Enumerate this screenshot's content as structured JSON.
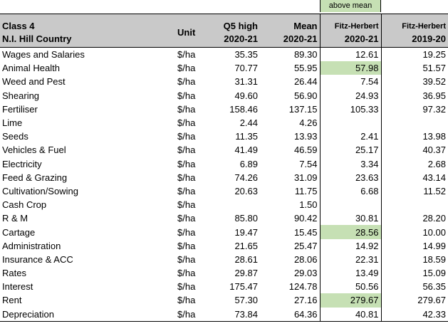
{
  "legend": {
    "label": "above mean",
    "color": "#c6e0b4"
  },
  "header": {
    "title_line1": "Class 4",
    "title_line2": "N.I. Hill Country",
    "unit": "Unit",
    "q5_line1": "Q5 high",
    "q5_line2": "2020-21",
    "mean_line1": "Mean",
    "mean_line2": "2020-21",
    "fh21_line1": "Fitz-Herbert",
    "fh21_line2": "2020-21",
    "fh20_line1": "Fitz-Herbert",
    "fh20_line2": "2019-20"
  },
  "rows": [
    {
      "name": "Wages and Salaries",
      "unit": "$/ha",
      "q5": "35.35",
      "mean": "89.30",
      "fh21": "12.61",
      "fh20": "19.25",
      "above_mean": false
    },
    {
      "name": "Animal Health",
      "unit": "$/ha",
      "q5": "70.77",
      "mean": "55.95",
      "fh21": "57.98",
      "fh20": "51.57",
      "above_mean": true
    },
    {
      "name": "Weed and Pest",
      "unit": "$/ha",
      "q5": "31.31",
      "mean": "26.44",
      "fh21": "7.54",
      "fh20": "39.52",
      "above_mean": false
    },
    {
      "name": "Shearing",
      "unit": "$/ha",
      "q5": "49.60",
      "mean": "56.90",
      "fh21": "24.93",
      "fh20": "36.95",
      "above_mean": false
    },
    {
      "name": "Fertiliser",
      "unit": "$/ha",
      "q5": "158.46",
      "mean": "137.15",
      "fh21": "105.33",
      "fh20": "97.32",
      "above_mean": false
    },
    {
      "name": "Lime",
      "unit": "$/ha",
      "q5": "2.44",
      "mean": "4.26",
      "fh21": "",
      "fh20": "",
      "above_mean": false
    },
    {
      "name": "Seeds",
      "unit": "$/ha",
      "q5": "11.35",
      "mean": "13.93",
      "fh21": "2.41",
      "fh20": "13.98",
      "above_mean": false
    },
    {
      "name": "Vehicles & Fuel",
      "unit": "$/ha",
      "q5": "41.49",
      "mean": "46.59",
      "fh21": "25.17",
      "fh20": "40.37",
      "above_mean": false
    },
    {
      "name": "Electricity",
      "unit": "$/ha",
      "q5": "6.89",
      "mean": "7.54",
      "fh21": "3.34",
      "fh20": "2.68",
      "above_mean": false
    },
    {
      "name": "Feed & Grazing",
      "unit": "$/ha",
      "q5": "74.26",
      "mean": "31.09",
      "fh21": "23.63",
      "fh20": "43.14",
      "above_mean": false
    },
    {
      "name": "Cultivation/Sowing",
      "unit": "$/ha",
      "q5": "20.63",
      "mean": "11.75",
      "fh21": "6.68",
      "fh20": "11.52",
      "above_mean": false
    },
    {
      "name": "Cash Crop",
      "unit": "$/ha",
      "q5": "",
      "mean": "1.50",
      "fh21": "",
      "fh20": "",
      "above_mean": false
    },
    {
      "name": "R & M",
      "unit": "$/ha",
      "q5": "85.80",
      "mean": "90.42",
      "fh21": "30.81",
      "fh20": "28.20",
      "above_mean": false
    },
    {
      "name": "Cartage",
      "unit": "$/ha",
      "q5": "19.47",
      "mean": "15.45",
      "fh21": "28.56",
      "fh20": "10.00",
      "above_mean": true
    },
    {
      "name": "Administration",
      "unit": "$/ha",
      "q5": "21.65",
      "mean": "25.47",
      "fh21": "14.92",
      "fh20": "14.99",
      "above_mean": false
    },
    {
      "name": "Insurance & ACC",
      "unit": "$/ha",
      "q5": "28.61",
      "mean": "28.06",
      "fh21": "22.31",
      "fh20": "18.59",
      "above_mean": false
    },
    {
      "name": "Rates",
      "unit": "$/ha",
      "q5": "29.87",
      "mean": "29.03",
      "fh21": "13.49",
      "fh20": "15.09",
      "above_mean": false
    },
    {
      "name": "Interest",
      "unit": "$/ha",
      "q5": "175.47",
      "mean": "124.78",
      "fh21": "50.56",
      "fh20": "56.35",
      "above_mean": false
    },
    {
      "name": "Rent",
      "unit": "$/ha",
      "q5": "57.30",
      "mean": "27.16",
      "fh21": "279.67",
      "fh20": "279.67",
      "above_mean": true
    },
    {
      "name": "Depreciation",
      "unit": "$/ha",
      "q5": "73.84",
      "mean": "64.36",
      "fh21": "40.81",
      "fh20": "42.33",
      "above_mean": false
    }
  ]
}
